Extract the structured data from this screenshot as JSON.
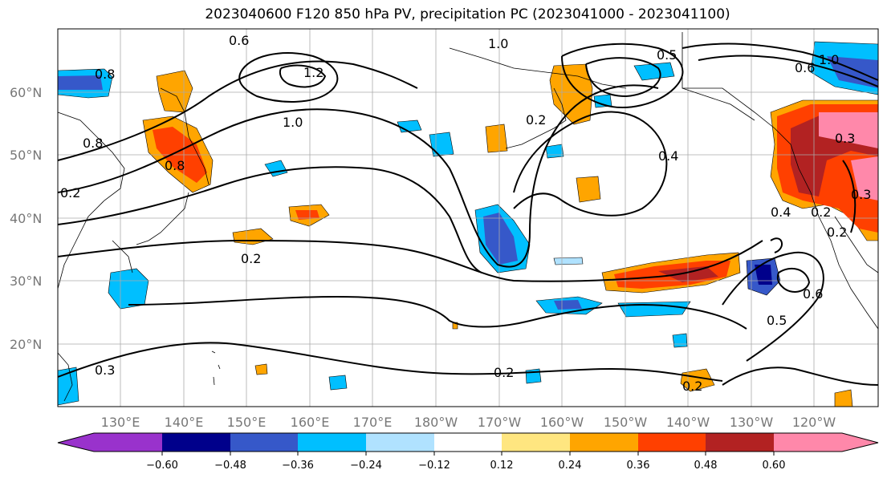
{
  "title": "2023040600 F120 850 hPa PV, precipitation PC (2023041000 - 2023041100)",
  "lat_labels": [
    "60°N",
    "50°N",
    "40°N",
    "30°N",
    "20°N"
  ],
  "lon_labels": [
    "130°E",
    "140°E",
    "150°E",
    "160°E",
    "170°E",
    "180°W",
    "170°W",
    "160°W",
    "150°W",
    "140°W",
    "130°W",
    "120°W"
  ],
  "contour_labels": [
    "0.6",
    "1.0",
    "0.5",
    "1.2",
    "1.0",
    "0.8",
    "0.8",
    "0.2",
    "0.3",
    "0.2",
    "0.4",
    "0.2",
    "0.2",
    "0.5",
    "0.6",
    "0.3",
    "0.2",
    "0.3",
    "0.4",
    "0.2",
    "0.8",
    "0.6",
    "1.0",
    "0.2"
  ],
  "colorbar": {
    "ticks": [
      "−0.60",
      "−0.48",
      "−0.36",
      "−0.24",
      "−0.12",
      "0.12",
      "0.24",
      "0.36",
      "0.48",
      "0.60"
    ],
    "colors": [
      "#9932cc",
      "#00008b",
      "#3658c9",
      "#00bfff",
      "#b0e2ff",
      "#ffffff",
      "#ffe680",
      "#ffa500",
      "#ff4000",
      "#b22222",
      "#ff88aa"
    ]
  }
}
